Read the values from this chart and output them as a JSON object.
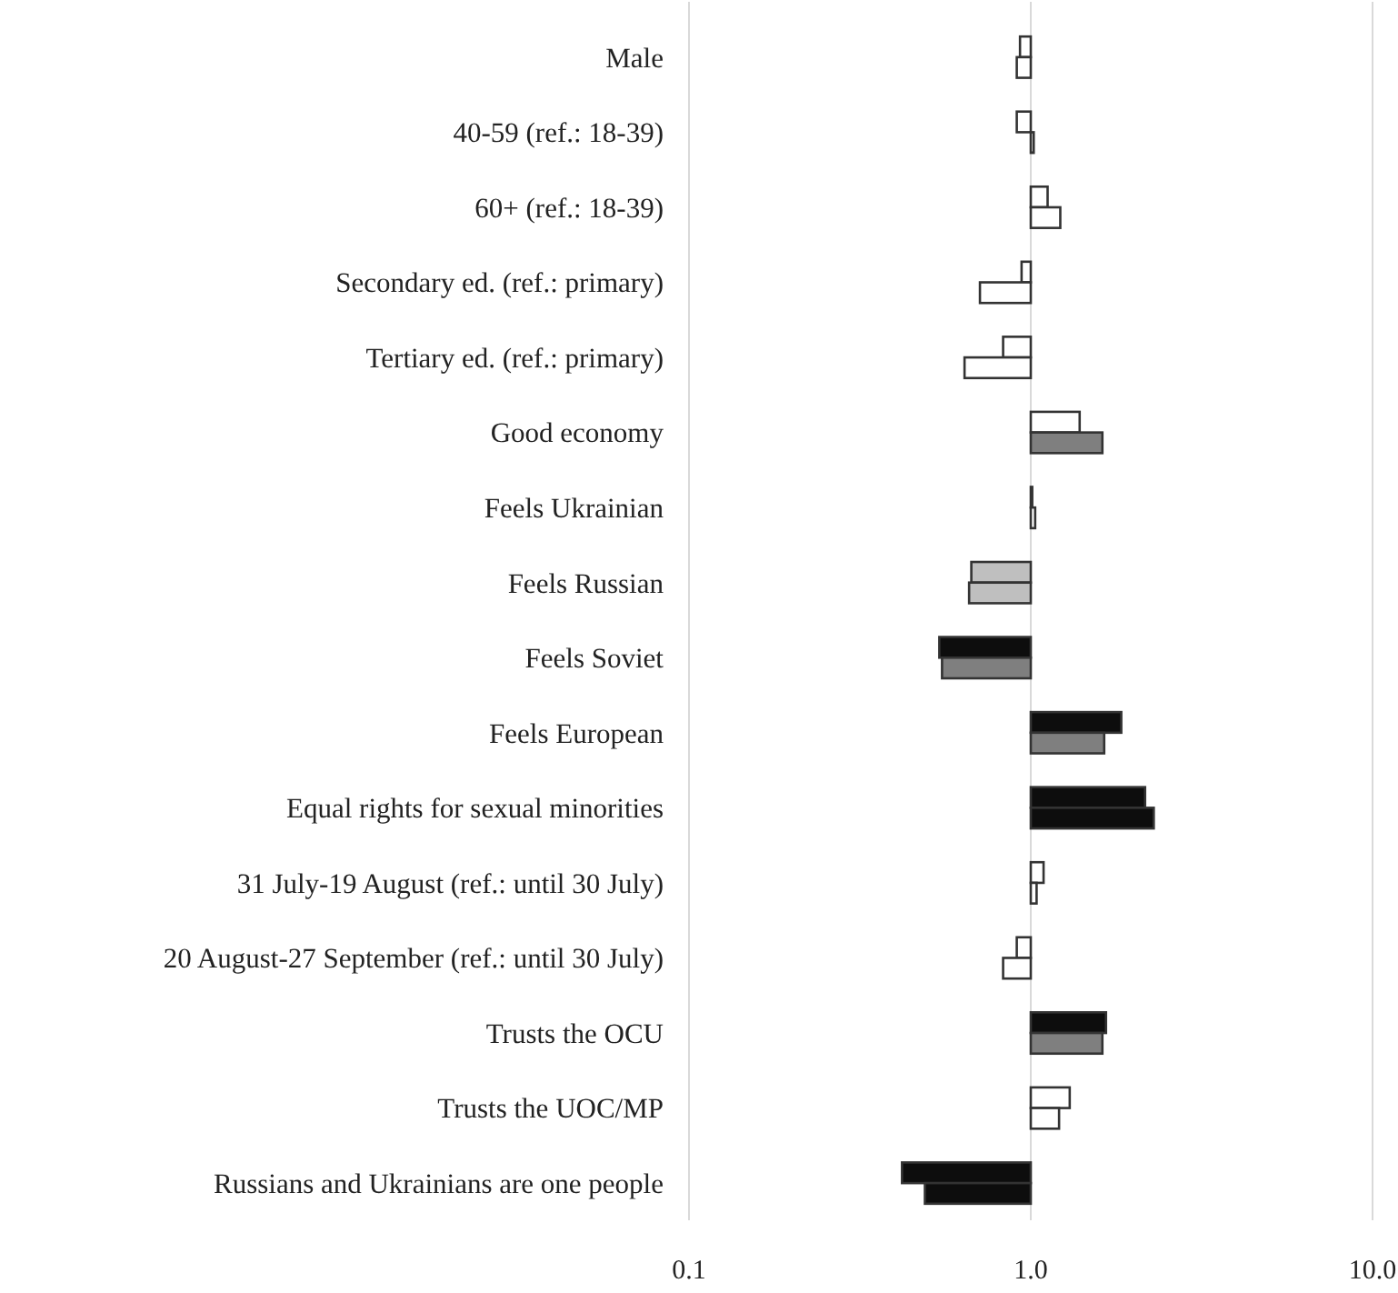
{
  "chart_data": {
    "type": "bar",
    "orientation": "horizontal",
    "log": "x",
    "grid": "x",
    "categories": [
      "Male",
      "40-59 (ref.: 18-39)",
      "60+ (ref.: 18-39)",
      "Secondary ed. (ref.: primary)",
      "Tertiary ed. (ref.: primary)",
      "Good economy",
      "Feels Ukrainian",
      "Feels Russian",
      "Feels Soviet",
      "Feels European",
      "Equal rights for sexual minorities",
      "31 July-19 August (ref.: until 30 July)",
      "20 August-27 September (ref.: until 30 July)",
      "Trusts the OCU",
      "Trusts the UOC/MP",
      "Russians and Ukrainians are one people"
    ],
    "xlim": [
      0.1,
      10
    ],
    "xticks": [
      {
        "value": 0.1,
        "label": "0.1"
      },
      {
        "value": 1,
        "label": "1.0"
      },
      {
        "value": 10,
        "label": "10.0"
      }
    ],
    "series": [
      {
        "base": [
          1,
          1,
          1,
          1,
          1,
          1,
          1,
          1,
          1,
          1,
          1,
          1,
          1,
          1,
          1,
          1
        ],
        "values": [
          -0.07,
          -0.09,
          0.12,
          -0.06,
          -0.17,
          0.39,
          0.01,
          -0.33,
          -0.46,
          0.84,
          1.16,
          0.09,
          -0.09,
          0.66,
          0.3,
          -0.58
        ],
        "colors": [
          "#ffffff",
          "#ffffff",
          "#ffffff",
          "#ffffff",
          "#ffffff",
          "#ffffff",
          "#bfbfbf",
          "#bfbfbf",
          "#0d0d0d",
          "#0d0d0d",
          "#0d0d0d",
          "#ffffff",
          "#ffffff",
          "#0d0d0d",
          "#ffffff",
          "#0d0d0d"
        ]
      },
      {
        "base": [
          1,
          1,
          1,
          1,
          1,
          1,
          1,
          1,
          1,
          1,
          1,
          1,
          1,
          1,
          1,
          1
        ],
        "values": [
          -0.09,
          0.02,
          0.22,
          -0.29,
          -0.36,
          0.62,
          0.03,
          -0.34,
          -0.45,
          0.64,
          1.29,
          0.04,
          -0.17,
          0.62,
          0.21,
          -0.51
        ],
        "colors": [
          "#ffffff",
          "#ffffff",
          "#ffffff",
          "#ffffff",
          "#ffffff",
          "#7f7f7f",
          "#ffffff",
          "#bfbfbf",
          "#7f7f7f",
          "#7f7f7f",
          "#0d0d0d",
          "#ffffff",
          "#ffffff",
          "#7f7f7f",
          "#ffffff",
          "#0d0d0d"
        ]
      }
    ]
  }
}
